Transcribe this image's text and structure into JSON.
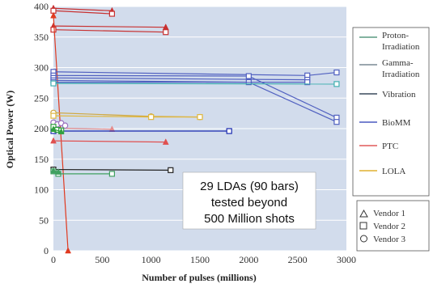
{
  "chart_data": {
    "type": "line",
    "xlabel": "Number of pulses (millions)",
    "ylabel": "Optical Power (W)",
    "xlim": [
      0,
      3000
    ],
    "ylim": [
      0,
      400
    ],
    "xticks": [
      "0",
      "500",
      "1000",
      "1500",
      "2000",
      "2500",
      "3000"
    ],
    "yticks": [
      "0",
      "50",
      "100",
      "150",
      "200",
      "250",
      "300",
      "350",
      "400"
    ],
    "grid": "horizontal",
    "legend_position": "right",
    "legend_programs": [
      {
        "name": "Proton-Irradiation",
        "color": "#5a9a80"
      },
      {
        "name": "Gamma-Irradiation",
        "color": "#7a8a94"
      },
      {
        "name": "Vibration",
        "color": "#3a4a5c"
      },
      {
        "name": "BioMM",
        "color": "#4a58c0"
      },
      {
        "name": "PTC",
        "color": "#e05a5a"
      },
      {
        "name": "LOLA",
        "color": "#e0b030"
      }
    ],
    "legend_vendors": [
      {
        "name": "Vendor 1",
        "marker": "triangle"
      },
      {
        "name": "Vendor 2",
        "marker": "square"
      },
      {
        "name": "Vendor 3",
        "marker": "circle"
      }
    ],
    "annotation": [
      "29 LDAs (90 bars)",
      "tested beyond",
      "500 Million shots"
    ],
    "series": [
      {
        "color": "#c83030",
        "marker": "triangle",
        "x": [
          0,
          600
        ],
        "y": [
          397,
          393
        ]
      },
      {
        "color": "#c83030",
        "marker": "square",
        "x": [
          0,
          600
        ],
        "y": [
          393,
          388
        ]
      },
      {
        "color": "#c83030",
        "marker": "triangle",
        "x": [
          0,
          1150
        ],
        "y": [
          368,
          366
        ]
      },
      {
        "color": "#c83030",
        "marker": "square",
        "x": [
          0,
          1150
        ],
        "y": [
          362,
          358
        ]
      },
      {
        "color": "#e03a20",
        "marker": "triangle",
        "x": [
          0,
          150
        ],
        "y": [
          385,
          0
        ]
      },
      {
        "color": "#e05050",
        "marker": "triangle",
        "x": [
          0,
          1150
        ],
        "y": [
          180,
          178
        ]
      },
      {
        "color": "#e58a8a",
        "marker": "triangle",
        "x": [
          0,
          600
        ],
        "y": [
          201,
          199
        ]
      },
      {
        "color": "#5060c0",
        "marker": "square",
        "x": [
          0,
          2600,
          2900
        ],
        "y": [
          293,
          287,
          292
        ]
      },
      {
        "color": "#5060c0",
        "marker": "square",
        "x": [
          0,
          2000,
          2900
        ],
        "y": [
          287,
          286,
          218
        ]
      },
      {
        "color": "#5060c0",
        "marker": "square",
        "x": [
          0,
          2600
        ],
        "y": [
          283,
          280
        ]
      },
      {
        "color": "#5060c0",
        "marker": "square",
        "x": [
          0,
          2000,
          2900
        ],
        "y": [
          279,
          276,
          211
        ]
      },
      {
        "color": "#5060c0",
        "marker": "square",
        "x": [
          0,
          2600
        ],
        "y": [
          276,
          276
        ]
      },
      {
        "color": "#40b0b0",
        "marker": "square",
        "x": [
          0,
          2900
        ],
        "y": [
          274,
          273
        ]
      },
      {
        "color": "#1a2ab0",
        "marker": "square",
        "x": [
          0,
          1800
        ],
        "y": [
          196,
          196
        ]
      },
      {
        "color": "#d0a840",
        "marker": "circle",
        "x": [
          0,
          1000,
          1500
        ],
        "y": [
          226,
          220,
          219
        ]
      },
      {
        "color": "#e0b840",
        "marker": "square",
        "x": [
          0,
          1000,
          1500
        ],
        "y": [
          221,
          219,
          219
        ]
      },
      {
        "color": "#9a70c0",
        "marker": "circle",
        "x": [
          0,
          40,
          80,
          120
        ],
        "y": [
          210,
          207,
          209,
          205
        ]
      },
      {
        "color": "#30a040",
        "marker": "square",
        "x": [
          0,
          40,
          80
        ],
        "y": [
          203,
          198,
          197
        ]
      },
      {
        "color": "#30a040",
        "marker": "triangle",
        "x": [
          0,
          80
        ],
        "y": [
          199,
          195
        ]
      },
      {
        "color": "#222222",
        "marker": "square",
        "x": [
          0,
          1200
        ],
        "y": [
          133,
          132
        ]
      },
      {
        "color": "#40a060",
        "marker": "square",
        "x": [
          0,
          50,
          600
        ],
        "y": [
          130,
          126,
          126
        ]
      },
      {
        "color": "#40a060",
        "marker": "triangle",
        "x": [
          0,
          50
        ],
        "y": [
          131,
          129
        ]
      }
    ]
  }
}
